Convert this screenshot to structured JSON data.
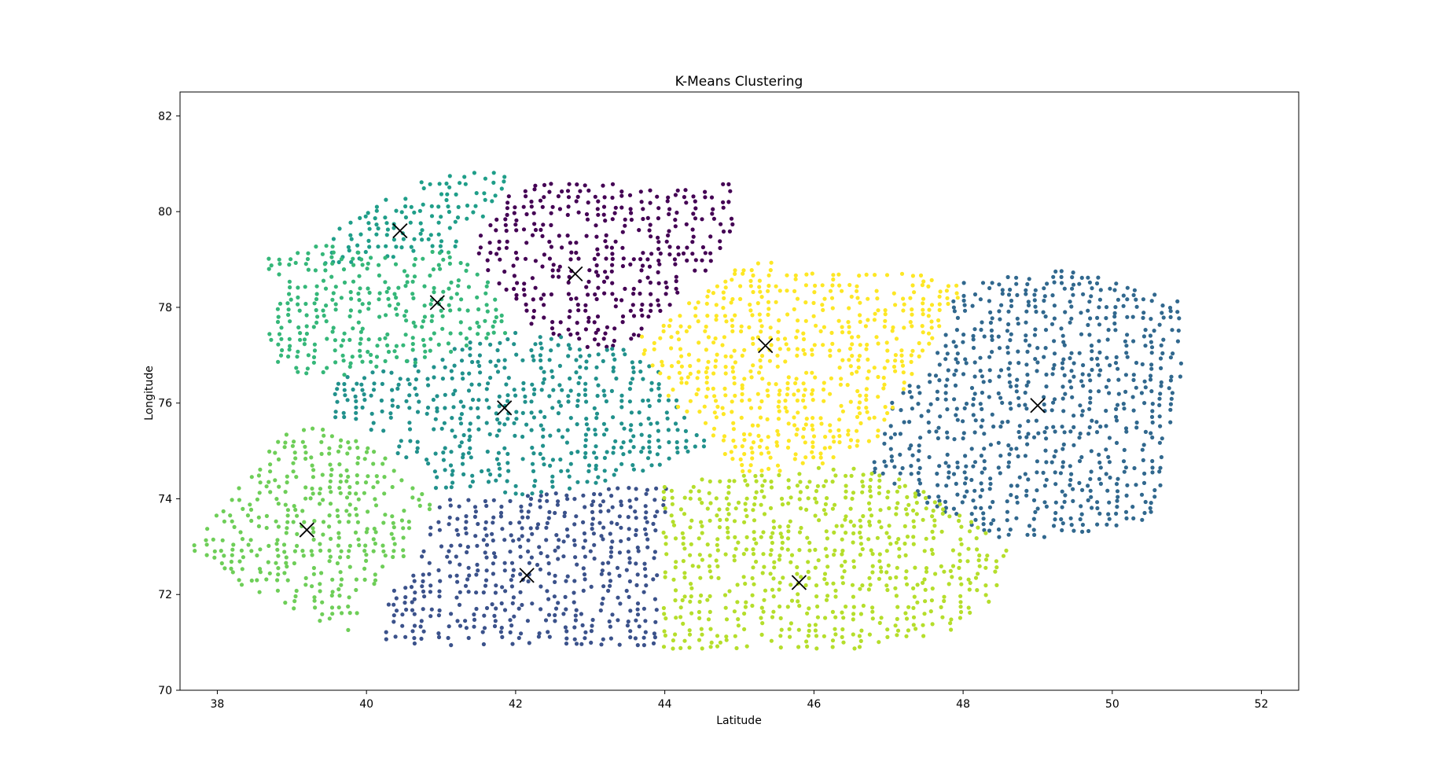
{
  "chart_data": {
    "type": "scatter",
    "title": "K-Means Clustering",
    "xlabel": "Latitude",
    "ylabel": "Longitude",
    "xlim": [
      37.5,
      52.5
    ],
    "ylim": [
      70,
      82.5
    ],
    "xticks": [
      38,
      40,
      42,
      44,
      46,
      48,
      50,
      52
    ],
    "yticks": [
      70,
      72,
      74,
      76,
      78,
      80,
      82
    ],
    "grid": false,
    "legend": false,
    "centroid_marker": "x",
    "centroid_color": "#000000",
    "clusters": [
      {
        "color": "#440154",
        "centroid": [
          42.8,
          78.7
        ],
        "region": [
          [
            42.0,
            80.6
          ],
          [
            43.0,
            80.6
          ],
          [
            44.0,
            80.5
          ],
          [
            45.0,
            80.6
          ],
          [
            44.9,
            79.5
          ],
          [
            44.6,
            78.8
          ],
          [
            43.6,
            77.2
          ],
          [
            42.9,
            77.2
          ],
          [
            42.2,
            77.6
          ],
          [
            41.7,
            78.6
          ],
          [
            41.4,
            79.3
          ]
        ]
      },
      {
        "color": "#3b528b",
        "centroid": [
          42.15,
          72.4
        ],
        "region": [
          [
            41.0,
            74.0
          ],
          [
            44.0,
            74.3
          ],
          [
            43.95,
            70.9
          ],
          [
            42.0,
            70.85
          ],
          [
            40.2,
            70.9
          ],
          [
            40.15,
            71.6
          ],
          [
            40.6,
            72.6
          ]
        ]
      },
      {
        "color": "#31688e",
        "centroid": [
          49.0,
          75.95
        ],
        "region": [
          [
            48.0,
            78.6
          ],
          [
            49.5,
            78.8
          ],
          [
            51.0,
            78.1
          ],
          [
            51.0,
            77.2
          ],
          [
            50.9,
            76.4
          ],
          [
            50.7,
            74.7
          ],
          [
            50.6,
            73.6
          ],
          [
            49.6,
            73.3
          ],
          [
            48.5,
            73.1
          ],
          [
            46.7,
            74.6
          ],
          [
            47.1,
            76.3
          ],
          [
            47.4,
            76.4
          ],
          [
            47.7,
            77.3
          ]
        ]
      },
      {
        "color": "#21918c",
        "centroid": [
          41.85,
          75.9
        ],
        "region": [
          [
            39.6,
            76.5
          ],
          [
            40.8,
            77.0
          ],
          [
            42.2,
            77.6
          ],
          [
            42.9,
            77.2
          ],
          [
            43.6,
            77.1
          ],
          [
            43.9,
            76.7
          ],
          [
            44.6,
            75.1
          ],
          [
            43.2,
            74.3
          ],
          [
            42.0,
            74.0
          ],
          [
            41.0,
            74.1
          ],
          [
            40.2,
            75.3
          ],
          [
            39.6,
            75.6
          ]
        ]
      },
      {
        "color": "#1f9e89",
        "centroid": [
          40.45,
          79.6
        ],
        "region": [
          [
            39.3,
            79.0
          ],
          [
            39.6,
            79.6
          ],
          [
            40.3,
            80.3
          ],
          [
            41.0,
            80.8
          ],
          [
            41.7,
            80.9
          ],
          [
            42.0,
            80.8
          ],
          [
            41.5,
            79.7
          ],
          [
            41.2,
            79.2
          ],
          [
            40.4,
            79.0
          ],
          [
            39.6,
            78.8
          ]
        ]
      },
      {
        "color": "#35b779",
        "centroid": [
          40.95,
          78.1
        ],
        "region": [
          [
            38.6,
            79.0
          ],
          [
            39.4,
            79.3
          ],
          [
            40.4,
            79.1
          ],
          [
            41.3,
            79.2
          ],
          [
            41.6,
            78.6
          ],
          [
            42.0,
            77.5
          ],
          [
            41.0,
            77.0
          ],
          [
            39.8,
            76.5
          ],
          [
            38.9,
            76.6
          ],
          [
            38.7,
            77.4
          ],
          [
            38.8,
            78.3
          ]
        ]
      },
      {
        "color": "#6ece58",
        "centroid": [
          39.2,
          73.35
        ],
        "region": [
          [
            37.6,
            73.0
          ],
          [
            38.3,
            74.3
          ],
          [
            38.9,
            75.5
          ],
          [
            39.6,
            75.5
          ],
          [
            40.3,
            74.8
          ],
          [
            40.9,
            73.9
          ],
          [
            40.6,
            73.0
          ],
          [
            40.0,
            71.9
          ],
          [
            39.7,
            71.0
          ],
          [
            39.2,
            71.6
          ],
          [
            38.5,
            72.0
          ]
        ]
      },
      {
        "color": "#b5de2b",
        "centroid": [
          45.8,
          72.25
        ],
        "region": [
          [
            44.0,
            74.3
          ],
          [
            45.6,
            74.6
          ],
          [
            46.6,
            74.7
          ],
          [
            47.5,
            74.2
          ],
          [
            48.2,
            73.5
          ],
          [
            48.6,
            72.9
          ],
          [
            48.5,
            72.0
          ],
          [
            47.8,
            71.2
          ],
          [
            46.7,
            70.9
          ],
          [
            45.3,
            70.9
          ],
          [
            44.0,
            70.9
          ],
          [
            44.0,
            72.6
          ]
        ]
      },
      {
        "color": "#fde725",
        "centroid": [
          45.35,
          77.2
        ],
        "region": [
          [
            44.6,
            78.4
          ],
          [
            45.1,
            79.1
          ],
          [
            45.9,
            78.8
          ],
          [
            46.6,
            78.7
          ],
          [
            47.6,
            78.7
          ],
          [
            48.0,
            78.4
          ],
          [
            47.6,
            77.3
          ],
          [
            47.3,
            76.4
          ],
          [
            46.8,
            75.2
          ],
          [
            46.0,
            74.6
          ],
          [
            45.0,
            74.6
          ],
          [
            44.6,
            75.2
          ],
          [
            43.8,
            76.6
          ],
          [
            43.6,
            77.2
          ],
          [
            44.1,
            77.9
          ]
        ]
      }
    ]
  }
}
